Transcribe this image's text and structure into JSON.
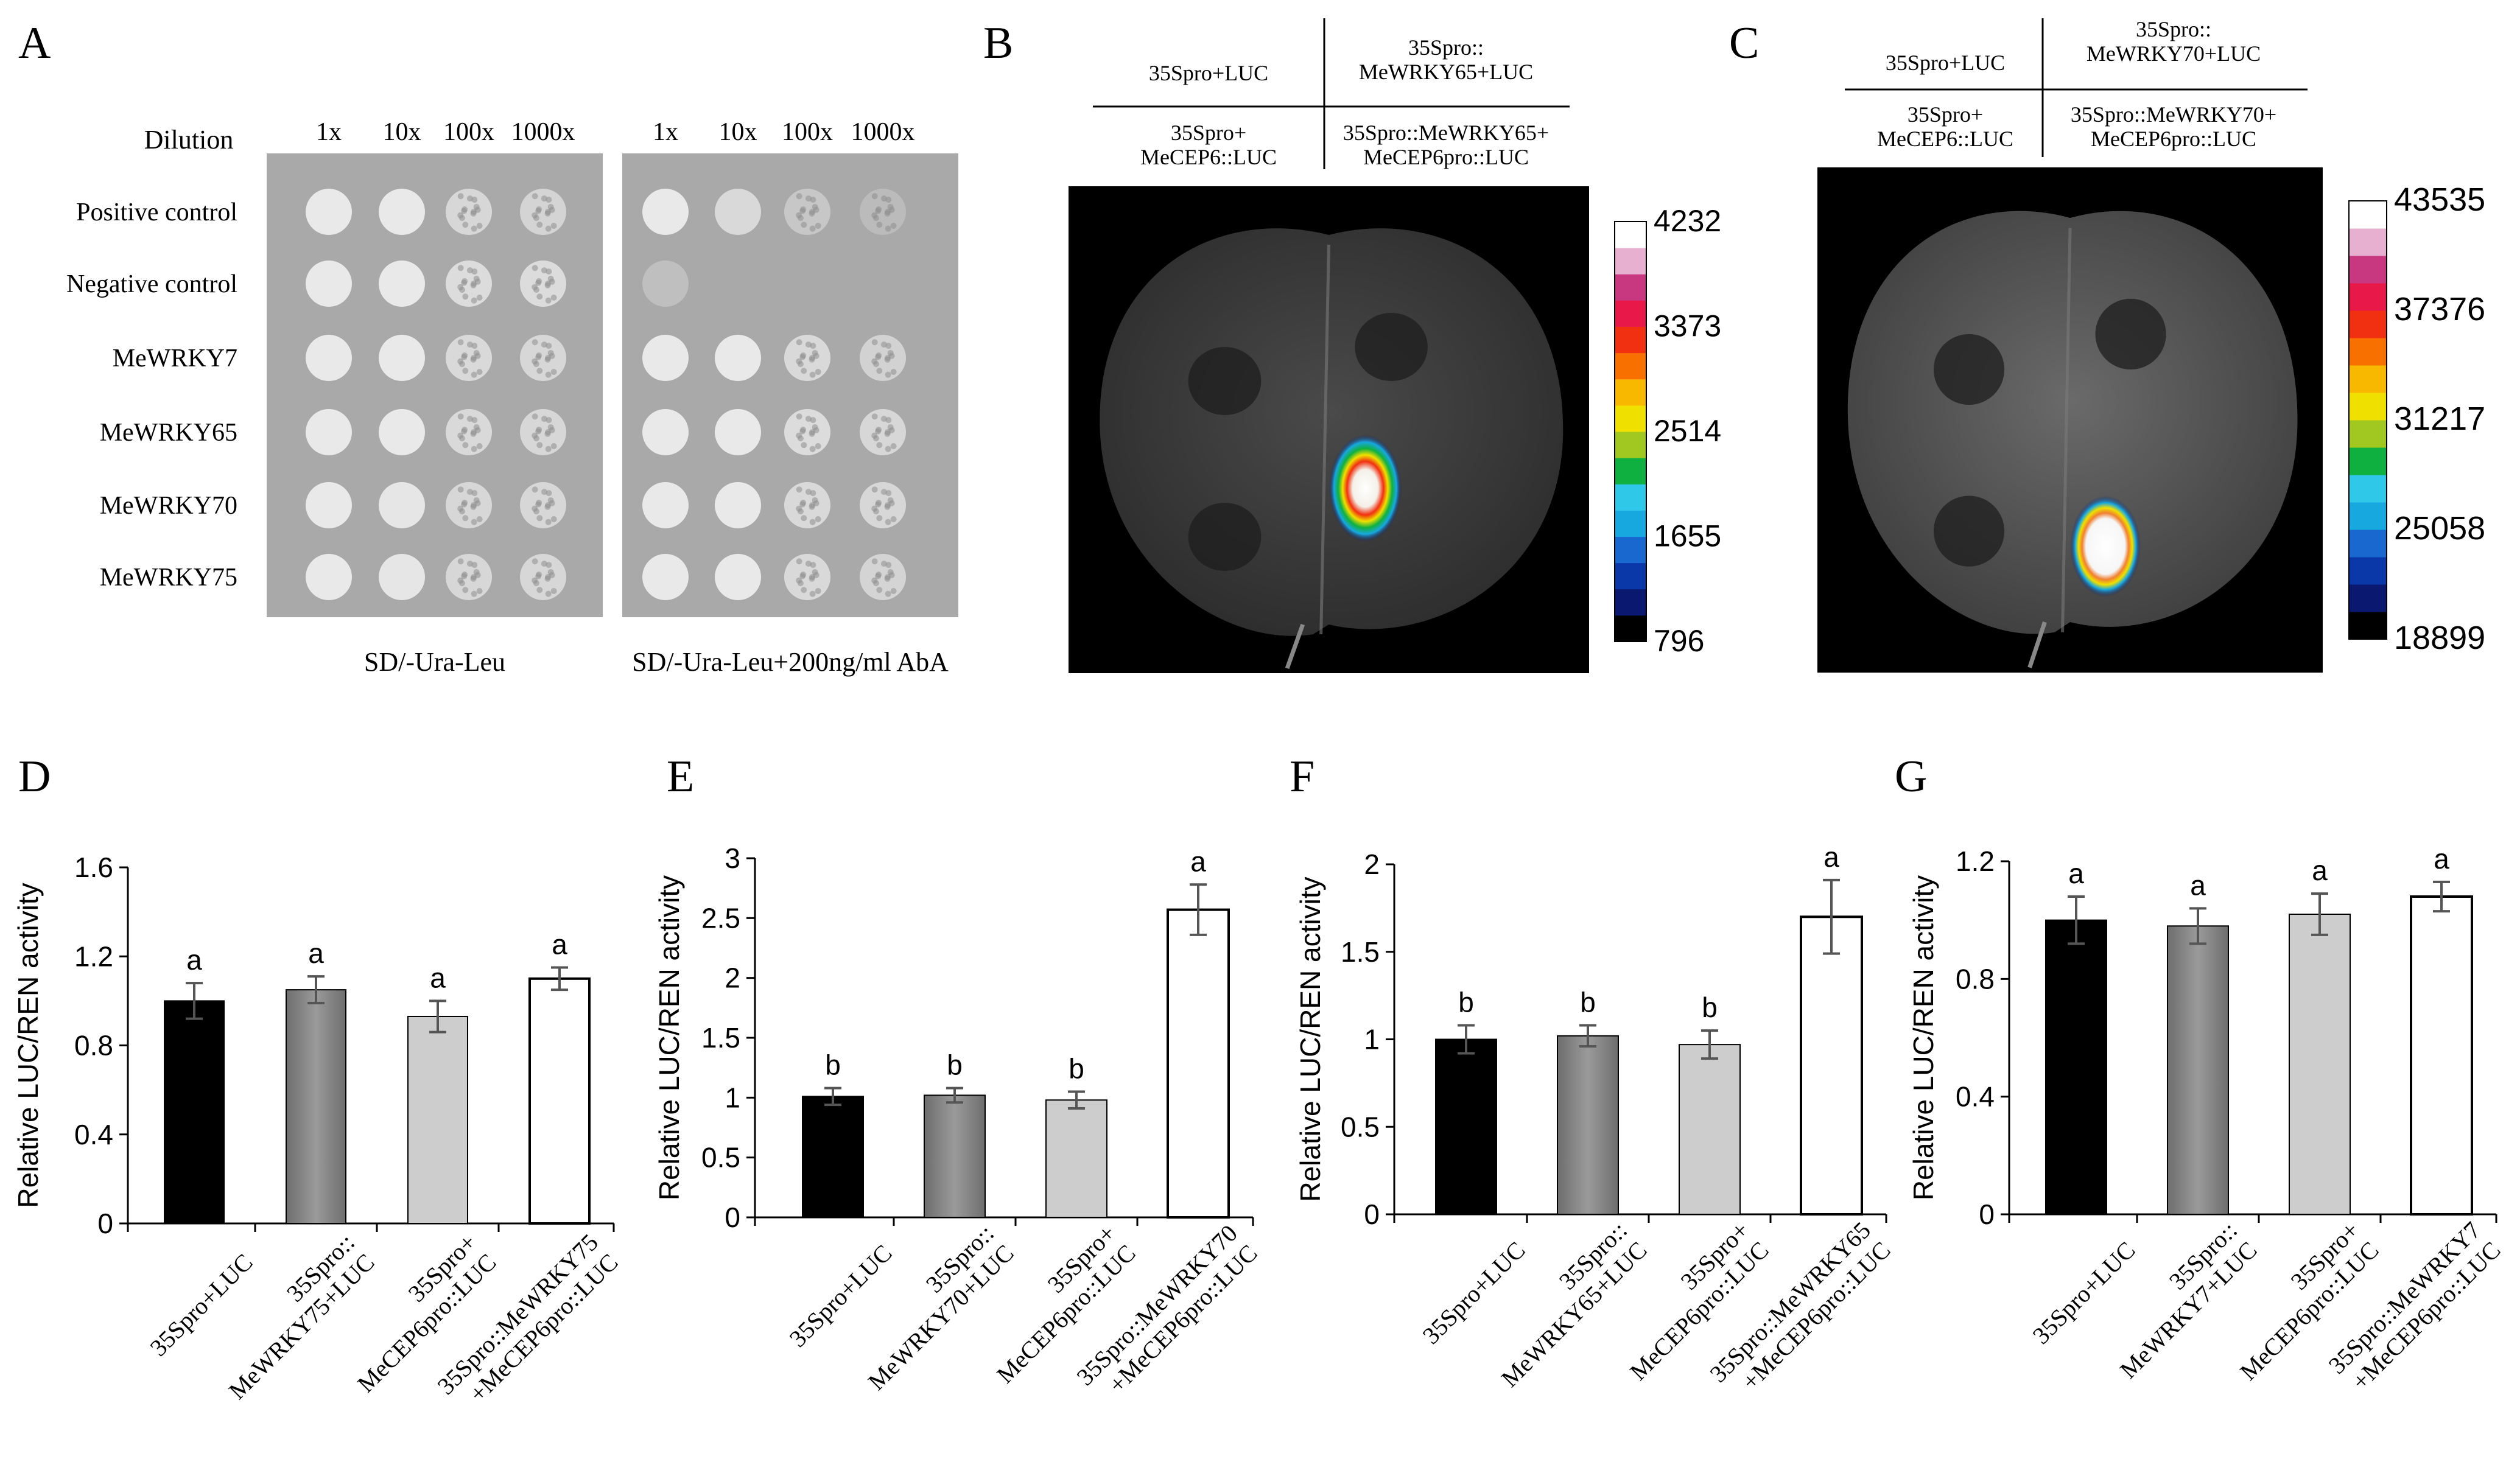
{
  "panel_letters": [
    "A",
    "B",
    "C",
    "D",
    "E",
    "F",
    "G"
  ],
  "panel_a": {
    "dilution_label": "Dilution",
    "dilutions": [
      "1x",
      "10x",
      "100x",
      "1000x"
    ],
    "rows": [
      "Positive control",
      "Negative control",
      "MeWRKY7",
      "MeWRKY65",
      "MeWRKY70",
      "MeWRKY75"
    ],
    "plate_labels": [
      "SD/-Ura-Leu",
      "SD/-Ura-Leu+200ng/ml AbA"
    ],
    "colors": {
      "plate_bg": "#a9a9a9",
      "colony": "#e9e9e9"
    }
  },
  "panel_b": {
    "quadrants": [
      "35Spro+LUC",
      "35Spro::\nMeWRKY65+LUC",
      "35Spro+\nMeCEP6::LUC",
      "35Spro::MeWRKY65+\nMeCEP6pro::LUC"
    ],
    "scale_ticks": [
      "4232",
      "3373",
      "2514",
      "1655",
      "796"
    ]
  },
  "panel_c": {
    "quadrants": [
      "35Spro+LUC",
      "35Spro::\nMeWRKY70+LUC",
      "35Spro+\nMeCEP6::LUC",
      "35Spro::MeWRKY70+\nMeCEP6pro::LUC"
    ],
    "scale_ticks": [
      "43535",
      "37376",
      "31217",
      "25058",
      "18899"
    ]
  },
  "colorbar_colors": [
    "#000000",
    "#0a1870",
    "#0a38a8",
    "#1868d0",
    "#18a8e0",
    "#30c8e8",
    "#10b040",
    "#a0c820",
    "#f0e000",
    "#f8b800",
    "#f87000",
    "#f03010",
    "#e81848",
    "#c83880",
    "#e8b0d0",
    "#ffffff"
  ],
  "chart_data": [
    {
      "panel": "D",
      "type": "bar",
      "categories": [
        "35Spro+LUC",
        "35Spro::\nMeWRKY75+LUC",
        "35Spro+\nMeCEP6pro::LUC",
        "35Spro::MeWRKY75\n+MeCEP6pro::LUC"
      ],
      "values": [
        1.0,
        1.05,
        0.93,
        1.1
      ],
      "errors": [
        0.08,
        0.06,
        0.07,
        0.05
      ],
      "letters": [
        "a",
        "a",
        "a",
        "a"
      ],
      "ylabel": "Relative LUC/REN activity",
      "ylim": [
        0,
        1.6
      ],
      "yticks": [
        0,
        0.4,
        0.8,
        1.2,
        1.6
      ],
      "ytick_labels": [
        "0",
        "0.4",
        "0.8",
        "1.2",
        "1.6"
      ],
      "bar_colors": [
        "#000000",
        "#8c8c8c",
        "#cdcdcd",
        "#ffffff"
      ]
    },
    {
      "panel": "E",
      "type": "bar",
      "categories": [
        "35Spro+LUC",
        "35Spro::\nMeWRKY70+LUC",
        "35Spro+\nMeCEP6pro::LUC",
        "35Spro::MeWRKY70\n+MeCEP6pro::LUC"
      ],
      "values": [
        1.01,
        1.02,
        0.98,
        2.57
      ],
      "errors": [
        0.07,
        0.06,
        0.07,
        0.21
      ],
      "letters": [
        "b",
        "b",
        "b",
        "a"
      ],
      "ylabel": "Relative LUC/REN activity",
      "ylim": [
        0,
        3
      ],
      "yticks": [
        0,
        0.5,
        1,
        1.5,
        2,
        2.5,
        3
      ],
      "ytick_labels": [
        "0",
        "0.5",
        "1",
        "1.5",
        "2",
        "2.5",
        "3"
      ],
      "bar_colors": [
        "#000000",
        "#8c8c8c",
        "#cdcdcd",
        "#ffffff"
      ]
    },
    {
      "panel": "F",
      "type": "bar",
      "categories": [
        "35Spro+LUC",
        "35Spro::\nMeWRKY65+LUC",
        "35Spro+\nMeCEP6pro::LUC",
        "35Spro::MeWRKY65\n+MeCEP6pro::LUC"
      ],
      "values": [
        1.0,
        1.02,
        0.97,
        1.7
      ],
      "errors": [
        0.08,
        0.06,
        0.08,
        0.21
      ],
      "letters": [
        "b",
        "b",
        "b",
        "a"
      ],
      "ylabel": "Relative LUC/REN activity",
      "ylim": [
        0,
        2
      ],
      "yticks": [
        0,
        0.5,
        1,
        1.5,
        2
      ],
      "ytick_labels": [
        "0",
        "0.5",
        "1",
        "1.5",
        "2"
      ],
      "bar_colors": [
        "#000000",
        "#8c8c8c",
        "#cdcdcd",
        "#ffffff"
      ]
    },
    {
      "panel": "G",
      "type": "bar",
      "categories": [
        "35Spro+LUC",
        "35Spro::\nMeWRKY7+LUC",
        "35Spro+\nMeCEP6pro::LUC",
        "35Spro::MeWRKY7\n+MeCEP6pro::LUC"
      ],
      "values": [
        1.0,
        0.98,
        1.02,
        1.08
      ],
      "errors": [
        0.08,
        0.06,
        0.07,
        0.05
      ],
      "letters": [
        "a",
        "a",
        "a",
        "a"
      ],
      "ylabel": "Relative LUC/REN activity",
      "ylim": [
        0,
        1.2
      ],
      "yticks": [
        0,
        0.4,
        0.8,
        1.2
      ],
      "ytick_labels": [
        "0",
        "0.4",
        "0.8",
        "1.2"
      ],
      "bar_colors": [
        "#000000",
        "#8c8c8c",
        "#cdcdcd",
        "#ffffff"
      ]
    }
  ]
}
